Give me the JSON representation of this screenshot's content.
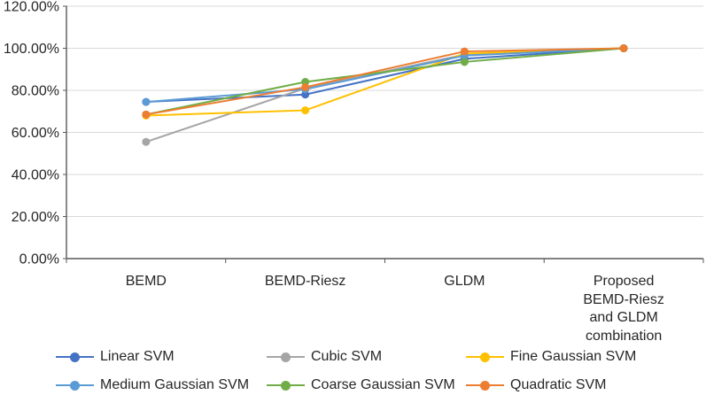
{
  "figure": {
    "background": "#FFFFFF",
    "text_color": "#262626",
    "gridline_color": "#D9D9D9",
    "axis_color": "#595959"
  },
  "chart_data": {
    "type": "line",
    "title": "",
    "xlabel": "",
    "ylabel": "",
    "grid": true,
    "legend_position": "bottom",
    "categories": [
      "BEMD",
      "BEMD-Riesz",
      "GLDM",
      "Proposed BEMD-Riesz and GLDM combination"
    ],
    "x_axis": {
      "tick_lines": [
        [
          "BEMD"
        ],
        [
          "BEMD-Riesz"
        ],
        [
          "GLDM"
        ],
        [
          "Proposed BEMD-Riesz",
          "and GLDM",
          "combination"
        ]
      ]
    },
    "y_axis": {
      "min": 0,
      "max": 120,
      "step": 20,
      "format": "percent",
      "tick_labels": [
        "0.00%",
        "20.00%",
        "40.00%",
        "60.00%",
        "80.00%",
        "100.00%",
        "120.00%"
      ]
    },
    "series": [
      {
        "name": "Linear SVM",
        "color": "#4472C4",
        "values": [
          74.5,
          78.0,
          95.0,
          100.0
        ]
      },
      {
        "name": "Cubic SVM",
        "color": "#A5A5A5",
        "values": [
          55.5,
          81.0,
          97.0,
          100.0
        ]
      },
      {
        "name": "Fine Gaussian SVM",
        "color": "#FFC000",
        "values": [
          68.0,
          70.5,
          97.5,
          100.0
        ]
      },
      {
        "name": "Medium Gaussian SVM",
        "color": "#5B9BD5",
        "values": [
          74.5,
          80.5,
          96.5,
          100.0
        ]
      },
      {
        "name": "Coarse Gaussian SVM",
        "color": "#70AD47",
        "values": [
          68.5,
          84.0,
          93.5,
          100.0
        ]
      },
      {
        "name": "Quadratic SVM",
        "color": "#ED7D31",
        "values": [
          68.5,
          81.5,
          98.5,
          100.0
        ]
      }
    ]
  }
}
